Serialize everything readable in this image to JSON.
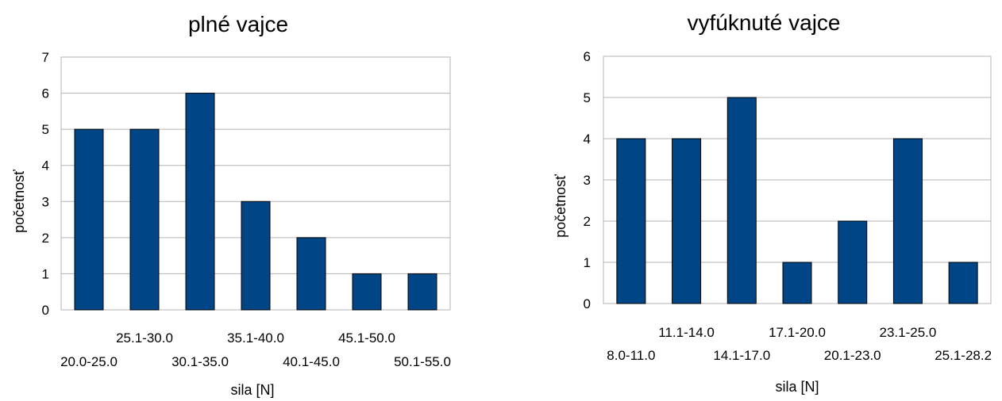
{
  "colors": {
    "bar": "#004586",
    "grid": "#b3b3b3"
  },
  "chart_data": [
    {
      "type": "bar",
      "title": "plné vajce",
      "xlabel": "sila [N]",
      "ylabel": "početnosť",
      "categories": [
        "20.0-25.0",
        "25.1-30.0",
        "30.1-35.0",
        "35.1-40.0",
        "40.1-45.0",
        "45.1-50.0",
        "50.1-55.0"
      ],
      "values": [
        5,
        5,
        6,
        3,
        2,
        1,
        1
      ],
      "ylim": [
        0,
        7
      ],
      "yticks": [
        "0",
        "1",
        "2",
        "3",
        "4",
        "5",
        "6",
        "7"
      ],
      "grid": true
    },
    {
      "type": "bar",
      "title": "vyfúknuté vajce",
      "xlabel": "sila [N]",
      "ylabel": "početnosť",
      "categories": [
        "8.0-11.0",
        "11.1-14.0",
        "14.1-17.0",
        "17.1-20.0",
        "20.1-23.0",
        "23.1-25.0",
        "25.1-28.2"
      ],
      "values": [
        4,
        4,
        5,
        1,
        2,
        4,
        1
      ],
      "ylim": [
        0,
        6
      ],
      "yticks": [
        "0",
        "1",
        "2",
        "3",
        "4",
        "5",
        "6"
      ],
      "grid": true
    }
  ]
}
